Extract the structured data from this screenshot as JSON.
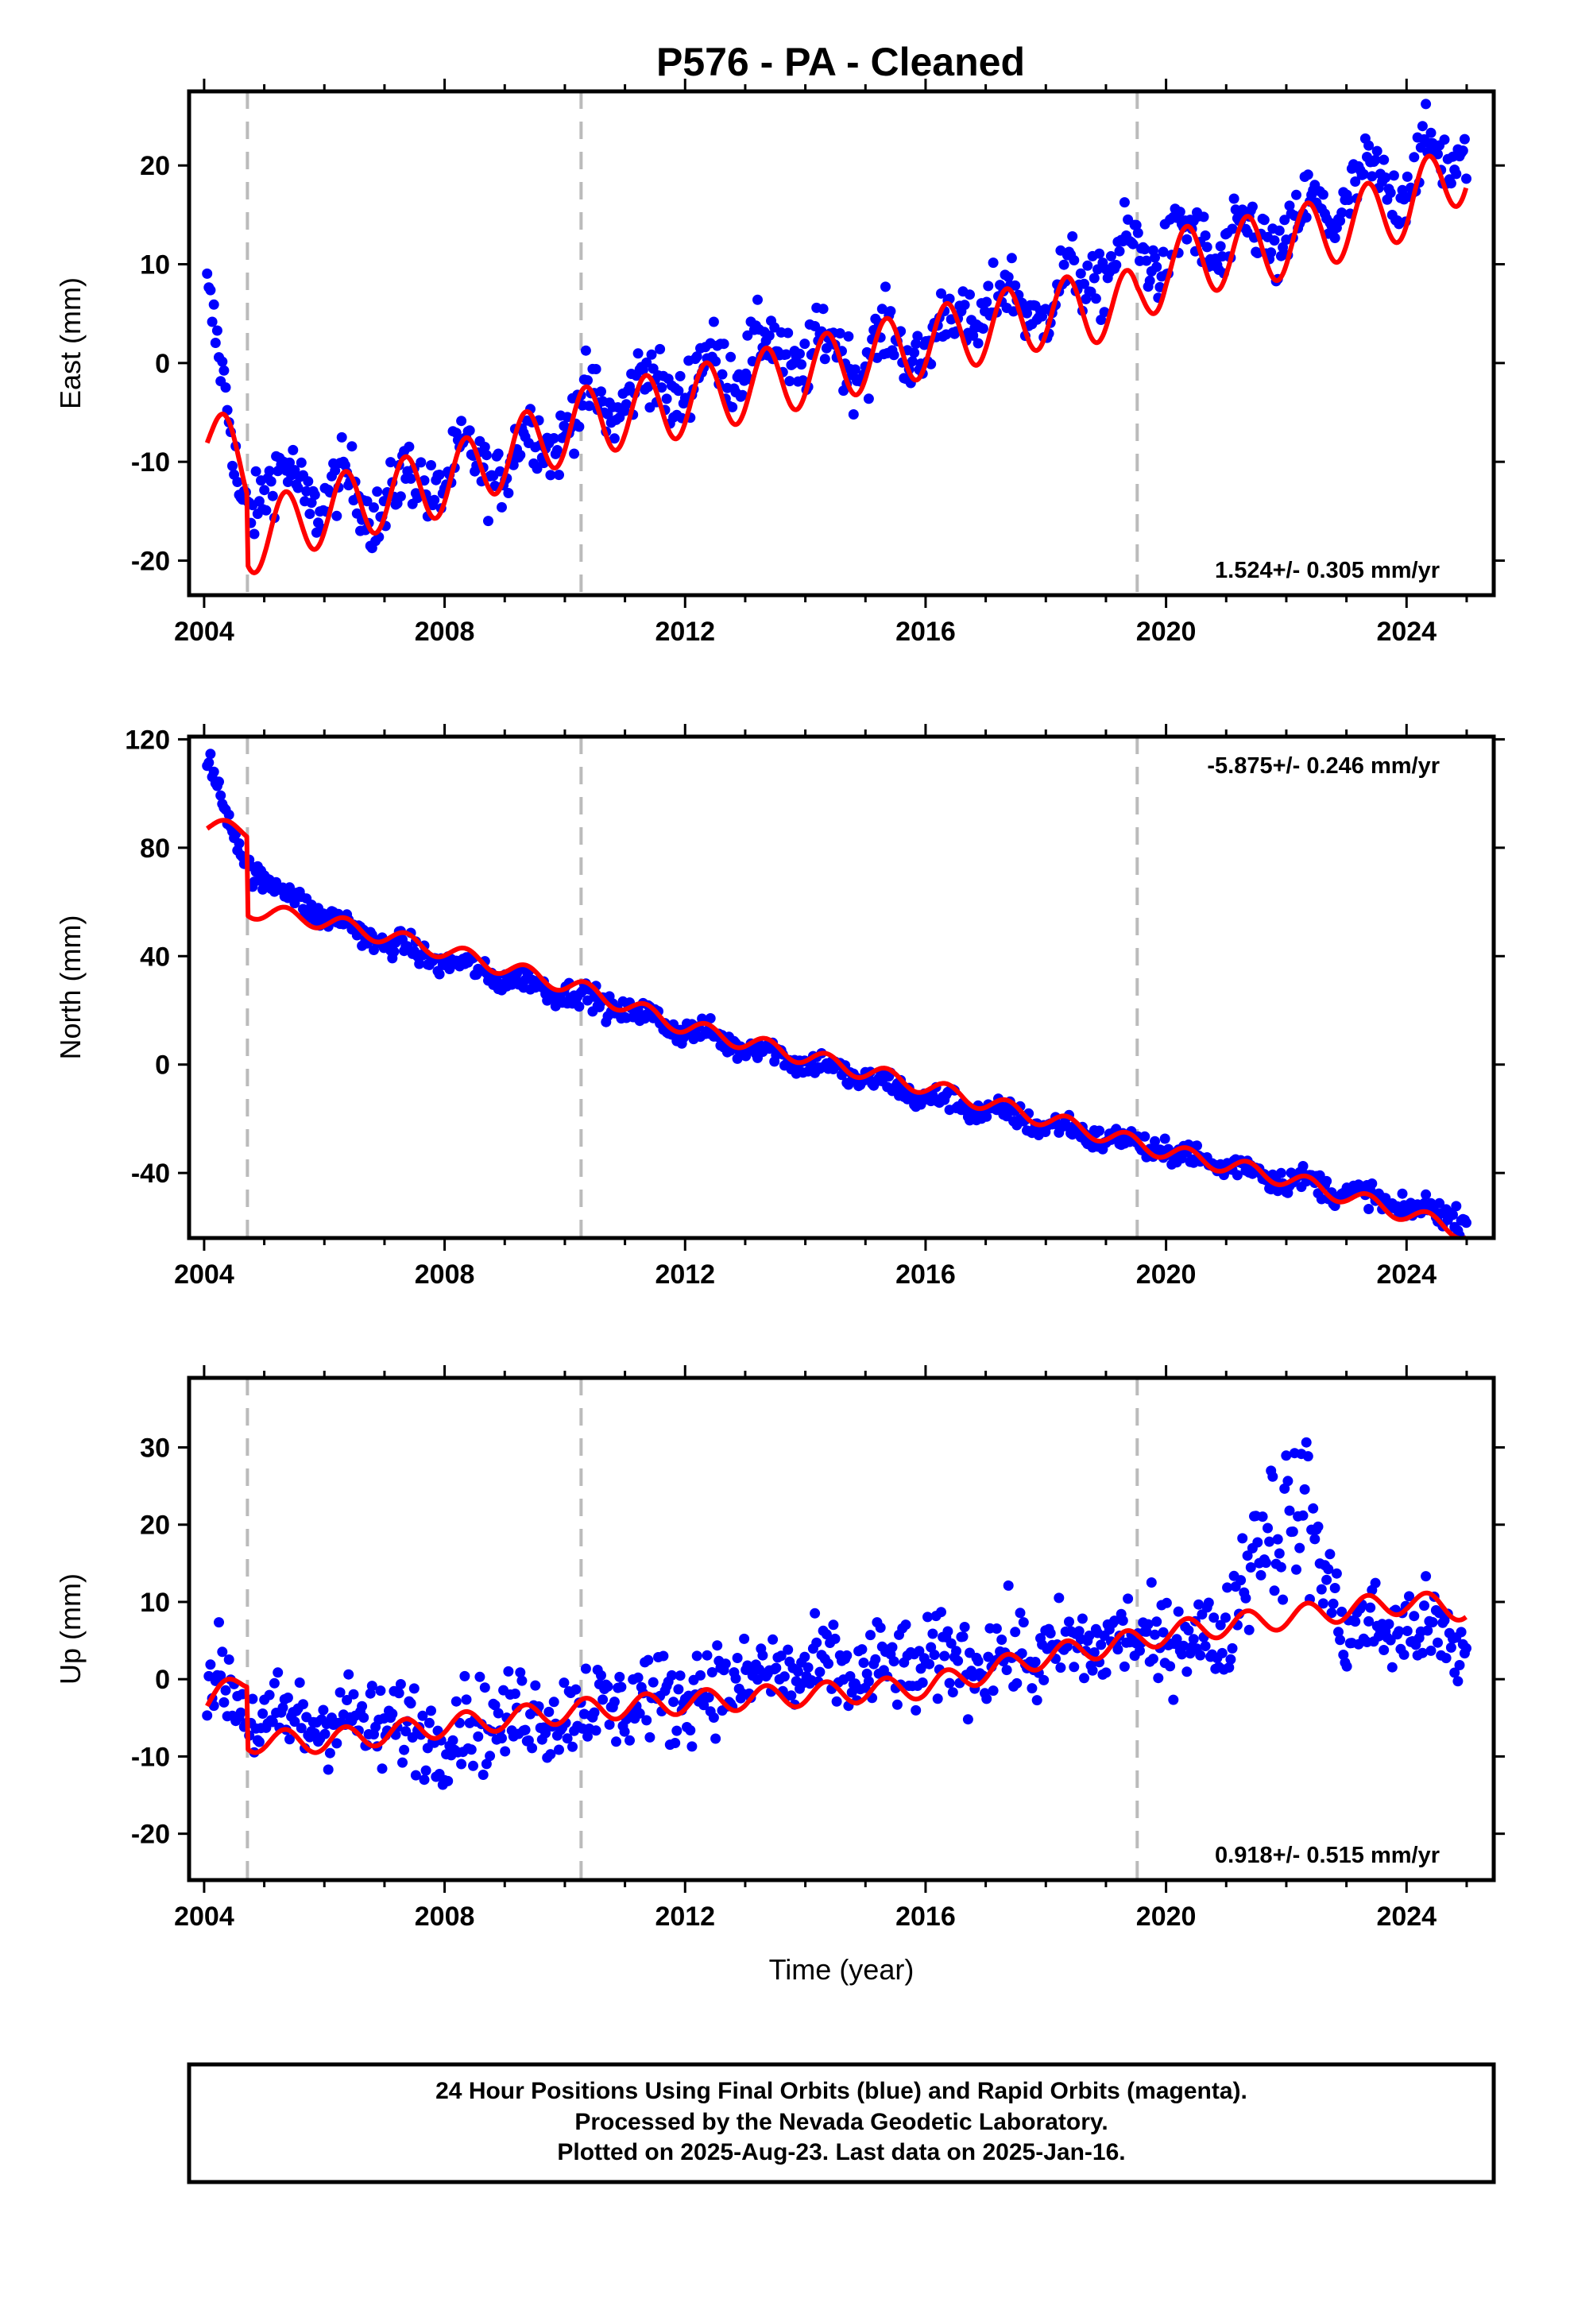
{
  "title": "P576  - PA - Cleaned",
  "colors": {
    "points": "#0000ff",
    "model": "#ff0000",
    "offset_lines": "#bbbbbb",
    "frame": "#000000"
  },
  "chart_data": [
    {
      "type": "scatter",
      "ylabel": "East (mm)",
      "xlabel": "",
      "xlim": [
        2003.75,
        2025.45
      ],
      "ylim": [
        -23.5,
        27.5
      ],
      "x_ticks": [
        2004,
        2008,
        2012,
        2016,
        2020,
        2024
      ],
      "y_ticks": [
        20,
        10,
        0,
        -10,
        -20
      ],
      "rate_label": "1.524+/- 0.305 mm/yr",
      "rate_position": "bottom-right",
      "offset_epochs": [
        2004.72,
        2010.27,
        2019.52
      ],
      "trend": {
        "start": -7,
        "end": 20,
        "annual_amplitude": 3.5
      },
      "series": [
        {
          "kind": "points",
          "x": [
            2004.05,
            2004.3,
            2004.6,
            2005.0,
            2006.0,
            2007.0,
            2008.0,
            2009.0,
            2010.0,
            2011.0,
            2012.0,
            2013.0,
            2014.0,
            2015.0,
            2016.0,
            2017.0,
            2018.0,
            2019.0,
            2020.0,
            2021.0,
            2022.0,
            2023.0,
            2024.0,
            2025.0
          ],
          "y": [
            8,
            -3,
            -14,
            -12,
            -13,
            -14,
            -11,
            -10,
            -6,
            -3,
            -2,
            1,
            1,
            1,
            2,
            6,
            6,
            10,
            12,
            12,
            13,
            17,
            19,
            22
          ]
        },
        {
          "kind": "model",
          "x": [
            2004.05,
            2004.72,
            2004.73,
            2006.0,
            2008.0,
            2010.27,
            2012.0,
            2014.0,
            2016.0,
            2018.0,
            2019.52,
            2020.0,
            2022.0,
            2024.0,
            2025.0
          ],
          "y": [
            -7,
            -11,
            -18,
            -15,
            -12,
            -6,
            -4,
            -1,
            2,
            5,
            6,
            10,
            12,
            16,
            20
          ]
        }
      ]
    },
    {
      "type": "scatter",
      "ylabel": "North (mm)",
      "xlabel": "",
      "xlim": [
        2003.75,
        2025.45
      ],
      "ylim": [
        -64,
        121
      ],
      "x_ticks": [
        2004,
        2008,
        2012,
        2016,
        2020,
        2024
      ],
      "y_ticks": [
        120,
        80,
        40,
        0,
        -40
      ],
      "rate_label": "-5.875+/- 0.246 mm/yr",
      "rate_position": "top-right",
      "offset_epochs": [
        2004.72,
        2010.27,
        2019.52
      ],
      "trend": {
        "start": 88,
        "end": -60,
        "annual_amplitude": 3
      },
      "series": [
        {
          "kind": "points",
          "x": [
            2004.05,
            2004.3,
            2004.7,
            2005.0,
            2006.0,
            2007.0,
            2008.0,
            2009.0,
            2010.0,
            2011.0,
            2012.0,
            2013.0,
            2014.0,
            2015.0,
            2016.0,
            2017.0,
            2018.0,
            2019.0,
            2020.0,
            2021.0,
            2022.0,
            2023.0,
            2024.0,
            2025.0
          ],
          "y": [
            115,
            95,
            75,
            68,
            55,
            45,
            38,
            32,
            27,
            20,
            13,
            7,
            1,
            -5,
            -12,
            -17,
            -22,
            -27,
            -32,
            -37,
            -42,
            -47,
            -53,
            -56
          ]
        },
        {
          "kind": "model",
          "x": [
            2004.05,
            2004.72,
            2004.73,
            2006.0,
            2008.0,
            2010.27,
            2012.0,
            2014.0,
            2016.0,
            2018.0,
            2020.0,
            2022.0,
            2024.0,
            2025.0
          ],
          "y": [
            88,
            86,
            57,
            53,
            42,
            28,
            14,
            3,
            -8,
            -20,
            -32,
            -42,
            -55,
            -62
          ]
        }
      ]
    },
    {
      "type": "scatter",
      "ylabel": "Up (mm)",
      "xlabel": "Time (year)",
      "xlim": [
        2003.75,
        2025.45
      ],
      "ylim": [
        -26,
        39
      ],
      "x_ticks": [
        2004,
        2008,
        2012,
        2016,
        2020,
        2024
      ],
      "y_ticks": [
        30,
        20,
        10,
        0,
        -10,
        -20
      ],
      "rate_label": "0.918+/- 0.515 mm/yr",
      "rate_position": "bottom-right",
      "offset_epochs": [
        2004.72,
        2010.27,
        2019.52
      ],
      "trend": {
        "start": -8,
        "end": 10,
        "annual_amplitude": 1.5
      },
      "series": [
        {
          "kind": "points",
          "x": [
            2004.05,
            2005.0,
            2006.0,
            2007.0,
            2008.0,
            2009.0,
            2010.0,
            2011.0,
            2012.0,
            2013.0,
            2014.0,
            2015.0,
            2016.0,
            2017.0,
            2018.0,
            2019.0,
            2020.0,
            2021.0,
            2021.6,
            2022.3,
            2023.0,
            2024.0,
            2025.0
          ],
          "y": [
            1,
            -6,
            -5,
            -6,
            -7,
            -5,
            -4,
            -3,
            -2,
            0,
            1,
            1,
            2,
            3,
            3,
            5,
            5,
            6,
            20,
            22,
            6,
            7,
            4
          ]
        },
        {
          "kind": "model",
          "x": [
            2004.05,
            2004.72,
            2004.73,
            2006.0,
            2008.0,
            2010.27,
            2012.0,
            2014.0,
            2016.0,
            2018.0,
            2019.52,
            2020.0,
            2022.0,
            2024.0,
            2025.0
          ],
          "y": [
            -3,
            0,
            -8,
            -8,
            -6,
            -4,
            -3,
            -2,
            -1,
            3,
            5,
            6,
            8,
            10,
            9
          ]
        }
      ]
    }
  ],
  "footer": {
    "line1": "24 Hour Positions Using Final Orbits (blue) and Rapid Orbits (magenta).",
    "line2": "Processed by the Nevada Geodetic Laboratory.",
    "line3": "Plotted on 2025-Aug-23. Last data on 2025-Jan-16."
  }
}
